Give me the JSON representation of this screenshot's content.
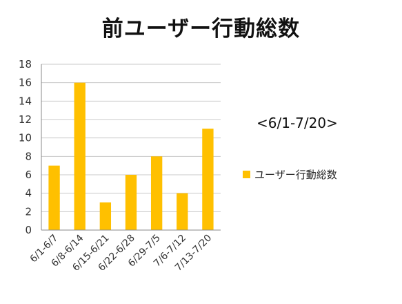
{
  "title": "前ユーザー行動総数",
  "subtitle": "<6/1-7/20>",
  "colors": {
    "bar": "#FFC000",
    "grid": "#c8c8c8",
    "axis": "#8a8a8a"
  },
  "chart_data": {
    "type": "bar",
    "categories": [
      "6/1-6/7",
      "6/8-6/14",
      "6/15-6/21",
      "6/22-6/28",
      "6/29-7/5",
      "7/6-7/12",
      "7/13-7/20"
    ],
    "series": [
      {
        "name": "ユーザー行動総数",
        "values": [
          7,
          16,
          3,
          6,
          8,
          4,
          11
        ]
      }
    ],
    "title": "前ユーザー行動総数",
    "xlabel": "",
    "ylabel": "",
    "ylim": [
      0,
      18
    ],
    "yticks": [
      0,
      2,
      4,
      6,
      8,
      10,
      12,
      14,
      16,
      18
    ],
    "grid": true,
    "legend": "right"
  }
}
